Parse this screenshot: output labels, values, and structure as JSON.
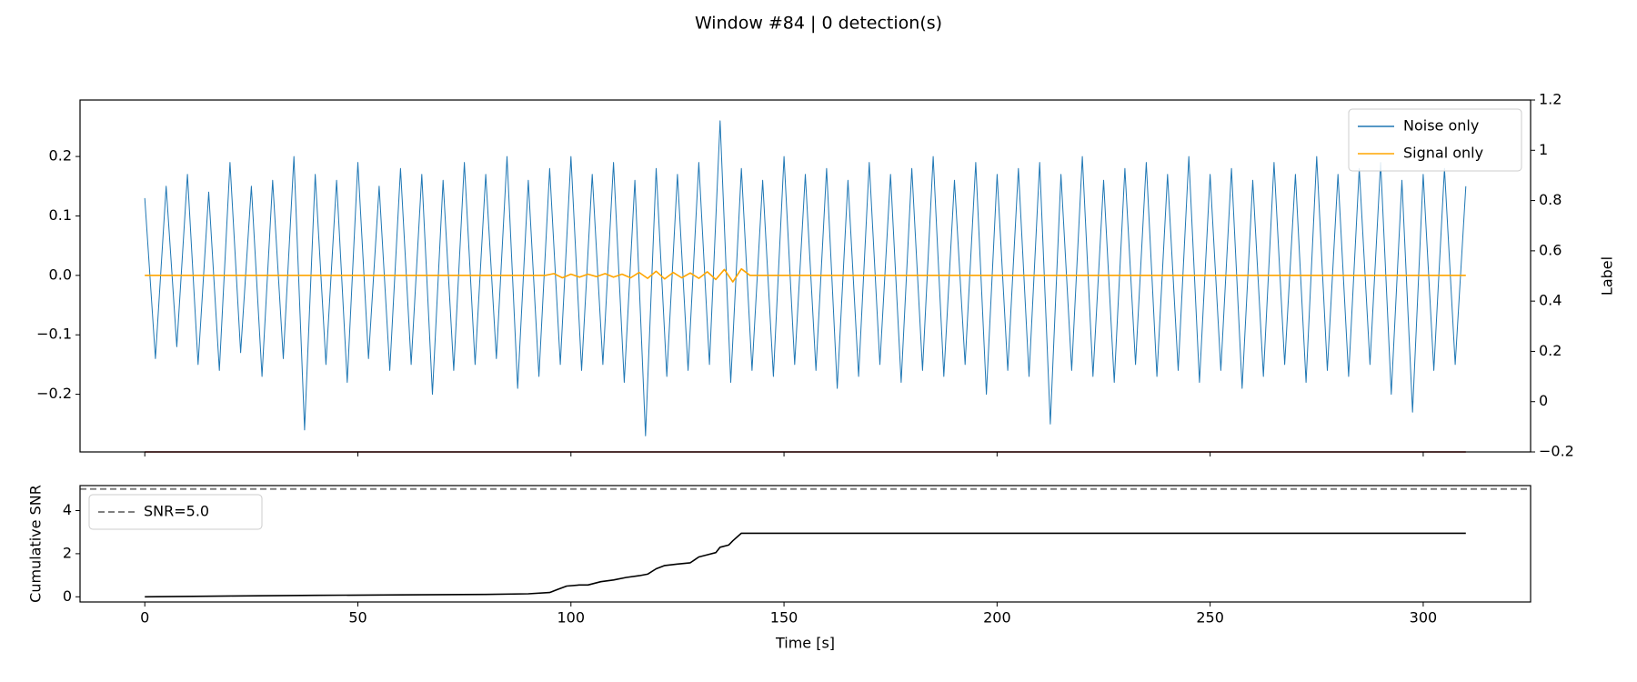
{
  "title": "Window #84 | 0 detection(s)",
  "chart_data": [
    {
      "type": "line",
      "y2label": "Label",
      "xlim": [
        -15.2,
        325.2
      ],
      "ylim": [
        -0.297,
        0.295
      ],
      "yticks": [
        {
          "value": -0.2,
          "label": "−0.2"
        },
        {
          "value": -0.1,
          "label": "−0.1"
        },
        {
          "value": 0.0,
          "label": "0.0"
        },
        0.1,
        0.2
      ],
      "y2lim": [
        -0.2,
        1.2
      ],
      "y2ticks": [
        {
          "value": -0.2,
          "label": "−0.2"
        },
        0.0,
        0.2,
        0.4,
        0.6,
        0.8,
        1.0,
        1.2
      ],
      "legend": "upper right",
      "series": [
        {
          "name": "Noise only",
          "color": "#1f77b4",
          "x": [
            0,
            2.5,
            5,
            7.5,
            10,
            12.5,
            15,
            17.5,
            20,
            22.5,
            25,
            27.5,
            30,
            32.5,
            35,
            37.5,
            40,
            42.5,
            45,
            47.5,
            50,
            52.5,
            55,
            57.5,
            60,
            62.5,
            65,
            67.5,
            70,
            72.5,
            75,
            77.5,
            80,
            82.5,
            85,
            87.5,
            90,
            92.5,
            95,
            97.5,
            100,
            102.5,
            105,
            107.5,
            110,
            112.5,
            115,
            117.5,
            120,
            122.5,
            125,
            127.5,
            130,
            132.5,
            135,
            137.5,
            140,
            142.5,
            145,
            147.5,
            150,
            152.5,
            155,
            157.5,
            160,
            162.5,
            165,
            167.5,
            170,
            172.5,
            175,
            177.5,
            180,
            182.5,
            185,
            187.5,
            190,
            192.5,
            195,
            197.5,
            200,
            202.5,
            205,
            207.5,
            210,
            212.5,
            215,
            217.5,
            220,
            222.5,
            225,
            227.5,
            230,
            232.5,
            235,
            237.5,
            240,
            242.5,
            245,
            247.5,
            250,
            252.5,
            255,
            257.5,
            260,
            262.5,
            265,
            267.5,
            270,
            272.5,
            275,
            277.5,
            280,
            282.5,
            285,
            287.5,
            290,
            292.5,
            295,
            297.5,
            300,
            302.5,
            305,
            307.5,
            310
          ],
          "values": [
            0.13,
            -0.14,
            0.15,
            -0.12,
            0.17,
            -0.15,
            0.14,
            -0.16,
            0.19,
            -0.13,
            0.15,
            -0.17,
            0.16,
            -0.14,
            0.2,
            -0.26,
            0.17,
            -0.15,
            0.16,
            -0.18,
            0.19,
            -0.14,
            0.15,
            -0.16,
            0.18,
            -0.15,
            0.17,
            -0.2,
            0.16,
            -0.16,
            0.19,
            -0.15,
            0.17,
            -0.14,
            0.2,
            -0.19,
            0.16,
            -0.17,
            0.18,
            -0.15,
            0.2,
            -0.16,
            0.17,
            -0.15,
            0.19,
            -0.18,
            0.16,
            -0.27,
            0.18,
            -0.17,
            0.17,
            -0.16,
            0.19,
            -0.15,
            0.26,
            -0.18,
            0.18,
            -0.16,
            0.16,
            -0.17,
            0.2,
            -0.15,
            0.17,
            -0.16,
            0.18,
            -0.19,
            0.16,
            -0.17,
            0.19,
            -0.15,
            0.17,
            -0.18,
            0.18,
            -0.16,
            0.2,
            -0.17,
            0.16,
            -0.15,
            0.19,
            -0.2,
            0.17,
            -0.16,
            0.18,
            -0.17,
            0.19,
            -0.25,
            0.17,
            -0.16,
            0.2,
            -0.17,
            0.16,
            -0.18,
            0.18,
            -0.15,
            0.19,
            -0.17,
            0.17,
            -0.16,
            0.2,
            -0.18,
            0.17,
            -0.16,
            0.18,
            -0.19,
            0.16,
            -0.17,
            0.19,
            -0.15,
            0.17,
            -0.18,
            0.2,
            -0.16,
            0.17,
            -0.17,
            0.18,
            -0.15,
            0.19,
            -0.2,
            0.16,
            -0.23,
            0.17,
            -0.16,
            0.18,
            -0.15,
            0.15
          ]
        },
        {
          "name": "Signal only",
          "color": "#ffa500",
          "x": [
            0,
            94,
            96,
            98,
            100,
            102,
            104,
            106,
            108,
            110,
            112,
            114,
            116,
            118,
            120,
            122,
            124,
            126,
            128,
            130,
            132,
            134,
            136,
            138,
            140,
            142,
            310
          ],
          "values": [
            0,
            0,
            0.003,
            -0.004,
            0.002,
            -0.003,
            0.002,
            -0.002,
            0.003,
            -0.003,
            0.002,
            -0.004,
            0.005,
            -0.005,
            0.007,
            -0.006,
            0.005,
            -0.004,
            0.004,
            -0.005,
            0.006,
            -0.007,
            0.01,
            -0.011,
            0.011,
            0,
            0
          ]
        },
        {
          "color": "#8b0000",
          "axis": "y2",
          "x": [
            0,
            310
          ],
          "values": [
            -0.2,
            -0.2
          ]
        }
      ]
    },
    {
      "type": "line",
      "ylabel": "Cumulative SNR",
      "xlabel": "Time [s]",
      "xlim": [
        -15.2,
        325.2
      ],
      "xticks": [
        0,
        50,
        100,
        150,
        200,
        250,
        300
      ],
      "ylim": [
        -0.24,
        5.16
      ],
      "yticks": [
        0,
        2,
        4
      ],
      "legend": "upper left",
      "hlines": [
        {
          "name": "SNR=5.0",
          "value": 5.0,
          "color": "#808080"
        }
      ],
      "series": [
        {
          "color": "#000000",
          "x": [
            0,
            20,
            40,
            60,
            80,
            90,
            95,
            97,
            99,
            102,
            104,
            107,
            110,
            113,
            116,
            118,
            120,
            122,
            125,
            128,
            130,
            132,
            134,
            135,
            137,
            138,
            140,
            310
          ],
          "values": [
            0,
            0.04,
            0.07,
            0.09,
            0.11,
            0.14,
            0.2,
            0.35,
            0.5,
            0.55,
            0.55,
            0.7,
            0.78,
            0.9,
            0.98,
            1.05,
            1.3,
            1.45,
            1.52,
            1.58,
            1.85,
            1.95,
            2.05,
            2.3,
            2.4,
            2.6,
            2.95,
            2.95
          ]
        }
      ]
    }
  ]
}
